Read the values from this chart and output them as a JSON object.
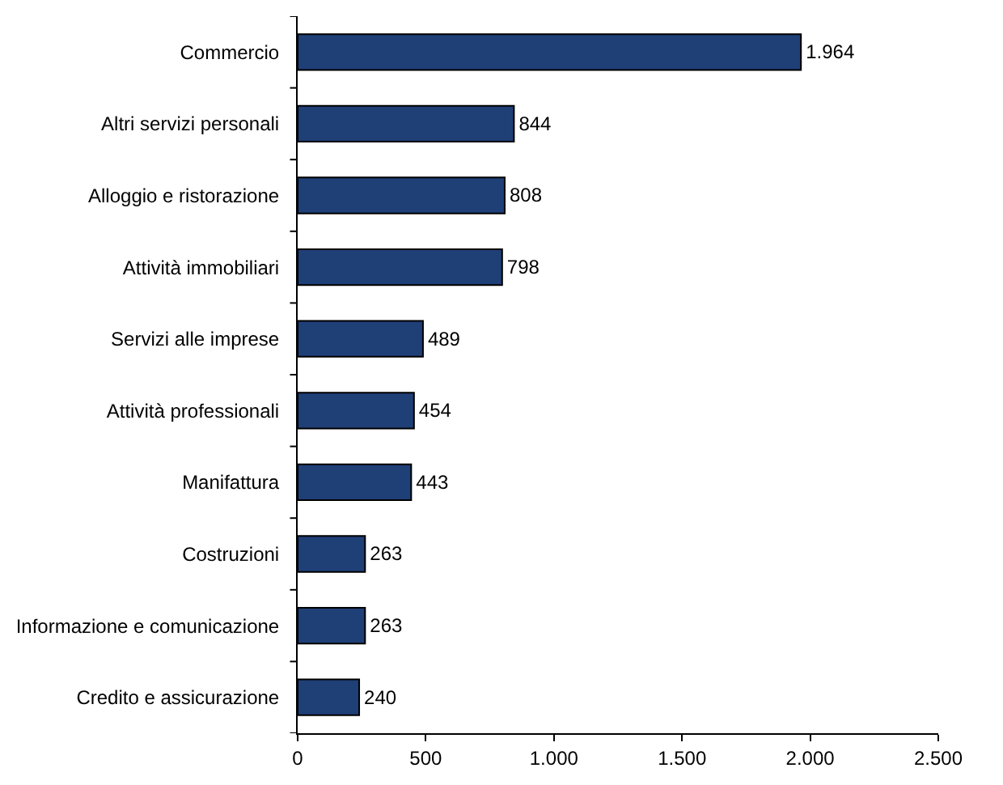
{
  "chart_data": {
    "type": "bar",
    "orientation": "horizontal",
    "categories": [
      "Commercio",
      "Altri servizi personali",
      "Alloggio e ristorazione",
      "Attività immobiliari",
      "Servizi alle imprese",
      "Attività professionali",
      "Manifattura",
      "Costruzioni",
      "Informazione e comunicazione",
      "Credito e assicurazione"
    ],
    "values": [
      1964,
      844,
      808,
      798,
      489,
      454,
      443,
      263,
      263,
      240
    ],
    "value_labels": [
      "1.964",
      "844",
      "808",
      "798",
      "489",
      "454",
      "443",
      "263",
      "263",
      "240"
    ],
    "color": "#1f3f77",
    "xlim": [
      0,
      2500
    ],
    "xticks": [
      0,
      500,
      {
        "value": 1000,
        "label": "1.000"
      },
      {
        "value": 1500,
        "label": "1.500"
      },
      {
        "value": 2000,
        "label": "2.000"
      },
      {
        "value": 2500,
        "label": "2.500"
      }
    ],
    "data_labels": false
  }
}
